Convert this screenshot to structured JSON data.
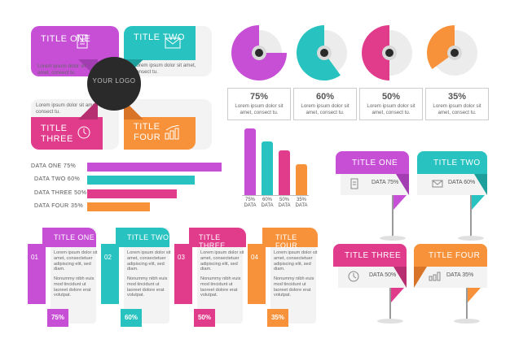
{
  "colors": {
    "purple": "#c64fd6",
    "teal": "#28c3c0",
    "pink": "#e13c8c",
    "orange": "#f7923a",
    "dark": "#2a2a2a"
  },
  "pinwheel": {
    "logo": "YOUR LOGO",
    "body": "Lorem ipsum dolor sit amet, consect tu.",
    "cards": [
      {
        "title": "TITLE ONE",
        "icon": "document-icon"
      },
      {
        "title": "TITLE TWO",
        "icon": "envelope-icon"
      },
      {
        "title": "TITLE THREE",
        "icon": "clock-icon"
      },
      {
        "title": "TITLE FOUR",
        "icon": "bar-chart-icon"
      }
    ]
  },
  "pies": [
    {
      "value": "75%",
      "fraction": 0.75,
      "text": "Lorem ipsum dolor sit amet, consect tu."
    },
    {
      "value": "60%",
      "fraction": 0.6,
      "text": "Lorem ipsum dolor sit amet, consect tu."
    },
    {
      "value": "50%",
      "fraction": 0.5,
      "text": "Lorem ipsum dolor sit amet, consect tu."
    },
    {
      "value": "35%",
      "fraction": 0.35,
      "text": "Lorem ipsum dolor sit amet, consect tu."
    }
  ],
  "hbars": [
    {
      "label": "DATA ONE 75%",
      "value": 75
    },
    {
      "label": "DATA TWO 60%",
      "value": 60
    },
    {
      "label": "DATA THREE 50%",
      "value": 50
    },
    {
      "label": "DATA FOUR 35%",
      "value": 35
    }
  ],
  "vbars": [
    {
      "pct": "75%",
      "sub": "DATA",
      "value": 75
    },
    {
      "pct": "60%",
      "sub": "DATA",
      "value": 60
    },
    {
      "pct": "50%",
      "sub": "DATA",
      "value": 50
    },
    {
      "pct": "35%",
      "sub": "DATA",
      "value": 35
    }
  ],
  "tags": [
    {
      "title": "TITLE ONE",
      "data": "DATA 75%",
      "icon": "document-icon"
    },
    {
      "title": "TITLE TWO",
      "data": "DATA 60%",
      "icon": "envelope-icon"
    },
    {
      "title": "TITLE THREE",
      "data": "DATA 50%",
      "icon": "clock-icon"
    },
    {
      "title": "TITLE FOUR",
      "data": "DATA 35%",
      "icon": "bar-chart-icon"
    }
  ],
  "cards": [
    {
      "num": "01",
      "title": "TITLE ONE",
      "text1": "Lorem ipsum dolor sit amet, consectetuer adipiscing elit, sed diam.",
      "text2": "Nonummy nibh euis mod tincidunt ut laoreet dolore erat volutpat.",
      "pct": "75%"
    },
    {
      "num": "02",
      "title": "TITLE TWO",
      "text1": "Lorem ipsum dolor sit amet, consectetuer adipiscing elit, sed diam.",
      "text2": "Nonummy nibh euis mod tincidunt ut laoreet dolore erat volutpat.",
      "pct": "60%"
    },
    {
      "num": "03",
      "title": "TITLE THREE",
      "text1": "Lorem ipsum dolor sit amet, consectetuer adipiscing elit, sed diam.",
      "text2": "Nonummy nibh euis mod tincidunt ut laoreet dolore erat volutpat.",
      "pct": "50%"
    },
    {
      "num": "04",
      "title": "TITLE FOUR",
      "text1": "Lorem ipsum dolor sit amet, consectetuer adipiscing elit, sed diam.",
      "text2": "Nonummy nibh euis mod tincidunt ut laoreet dolore erat volutpat.",
      "pct": "35%"
    }
  ]
}
